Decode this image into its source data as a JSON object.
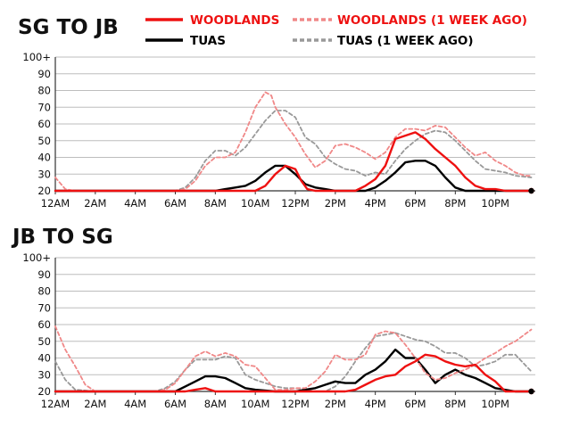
{
  "legend": [
    {
      "label": "WOODLANDS",
      "color": "#ee1111",
      "dashed": false
    },
    {
      "label": "WOODLANDS (1 WEEK AGO)",
      "color": "#ee1111",
      "dashed": true
    },
    {
      "label": "TUAS",
      "color": "#000000",
      "dashed": false
    },
    {
      "label": "TUAS (1 WEEK AGO)",
      "color": "#000000",
      "dashed": true
    }
  ],
  "colors": {
    "woodlands": "#ee1111",
    "woodlands_past": "#f08888",
    "tuas": "#000000",
    "tuas_past": "#999999",
    "grid": "#bdbdbd"
  },
  "chart_data": [
    {
      "type": "line",
      "title": "SG TO JB",
      "xlabel": "",
      "ylabel": "",
      "xlim": [
        0,
        24
      ],
      "ylim": [
        20,
        100
      ],
      "yticks": [
        "20",
        "30",
        "40",
        "50",
        "60",
        "70",
        "80",
        "90",
        "100+"
      ],
      "xticks": [
        "12AM",
        "2AM",
        "4AM",
        "6AM",
        "8AM",
        "10AM",
        "12PM",
        "2PM",
        "4PM",
        "6PM",
        "8PM",
        "10PM"
      ],
      "grid": true,
      "series": [
        {
          "name": "WOODLANDS",
          "x": [
            0,
            0.5,
            1,
            2,
            3,
            4,
            5,
            6,
            6.5,
            7,
            7.5,
            8,
            8.5,
            9,
            9.5,
            10,
            10.5,
            10.8,
            11,
            11.5,
            12,
            12.5,
            13,
            13.5,
            14,
            14.5,
            15,
            15.5,
            16,
            16.5,
            17,
            17.5,
            18,
            18.5,
            19,
            19.5,
            20,
            20.5,
            21,
            21.5,
            22,
            22.5,
            23,
            23.5,
            23.8
          ],
          "y": [
            28,
            21,
            20,
            20,
            20,
            20,
            20,
            20,
            21,
            26,
            35,
            40,
            40,
            43,
            55,
            70,
            79,
            77,
            70,
            60,
            52,
            42,
            34,
            38,
            47,
            48,
            46,
            43,
            39,
            43,
            52,
            57,
            57,
            56,
            59,
            58,
            52,
            46,
            41,
            43,
            38,
            35,
            31,
            29,
            29
          ]
        },
        {
          "name": "WOODLANDS (1 WEEK AGO)",
          "x": [
            0,
            2,
            4,
            6,
            6.5,
            7,
            7.5,
            8,
            8.5,
            9,
            9.5,
            10,
            10.5,
            11,
            11.5,
            12,
            12.5,
            13,
            13.5,
            14,
            14.5,
            15,
            15.5,
            16,
            16.5,
            17,
            17.5,
            18,
            18.5,
            19,
            19.5,
            20,
            20.5,
            21,
            21.5,
            22,
            22.5,
            23,
            23.8
          ],
          "y": [
            20,
            20,
            20,
            20,
            22,
            28,
            38,
            44,
            44,
            41,
            46,
            54,
            62,
            68,
            68,
            64,
            52,
            48,
            40,
            36,
            33,
            32,
            29,
            31,
            30,
            38,
            45,
            50,
            54,
            56,
            55,
            50,
            44,
            38,
            33,
            32,
            31,
            29,
            28
          ]
        },
        {
          "name": "TUAS",
          "x": [
            0,
            2,
            4,
            6,
            8,
            9,
            9.5,
            10,
            10.5,
            11,
            11.5,
            12,
            12.3,
            12.6,
            13,
            14,
            15,
            15.5,
            16,
            16.5,
            17,
            17.5,
            18,
            18.5,
            19,
            19.5,
            20,
            20.5,
            21,
            21.5,
            22,
            22.5,
            23,
            23.8
          ],
          "y": [
            20,
            20,
            20,
            20,
            20,
            20,
            20,
            20,
            23,
            30,
            35,
            33,
            26,
            21,
            20,
            20,
            20,
            23,
            27,
            35,
            51,
            53,
            55,
            51,
            45,
            40,
            35,
            28,
            23,
            21,
            21,
            20,
            20,
            20
          ]
        },
        {
          "name": "TUAS (1 WEEK AGO)",
          "x": [
            0,
            2,
            4,
            6,
            8,
            8.5,
            9,
            9.5,
            10,
            10.5,
            11,
            11.5,
            12,
            12.5,
            13,
            13.5,
            14,
            15,
            15.5,
            16,
            16.5,
            17,
            17.5,
            18,
            18.5,
            19,
            19.5,
            20,
            20.5,
            21,
            21.5,
            22,
            23.8
          ],
          "y": [
            20,
            20,
            20,
            20,
            20,
            21,
            22,
            23,
            26,
            31,
            35,
            35,
            30,
            24,
            22,
            21,
            20,
            20,
            20,
            22,
            26,
            31,
            37,
            38,
            38,
            35,
            28,
            22,
            20,
            20,
            20,
            20,
            20
          ]
        }
      ]
    },
    {
      "type": "line",
      "title": "JB TO SG",
      "xlabel": "",
      "ylabel": "",
      "xlim": [
        0,
        24
      ],
      "ylim": [
        20,
        100
      ],
      "yticks": [
        "20",
        "30",
        "40",
        "50",
        "60",
        "70",
        "80",
        "90",
        "100+"
      ],
      "xticks": [
        "12AM",
        "2AM",
        "4AM",
        "6AM",
        "8AM",
        "10AM",
        "12PM",
        "2PM",
        "4PM",
        "6PM",
        "8PM",
        "10PM"
      ],
      "grid": true,
      "series": [
        {
          "name": "WOODLANDS",
          "x": [
            0,
            0.5,
            1,
            1.5,
            2,
            3,
            4,
            5,
            5.5,
            6,
            6.5,
            7,
            7.5,
            8,
            8.5,
            9,
            9.5,
            10,
            10.5,
            11,
            11.5,
            12,
            12.5,
            13,
            13.5,
            14,
            14.5,
            15,
            15.5,
            16,
            16.5,
            17,
            17.5,
            18,
            18.5,
            19,
            19.5,
            20,
            20.5,
            21,
            21.5,
            22,
            22.5,
            23,
            23.8
          ],
          "y": [
            59,
            45,
            35,
            24,
            20,
            20,
            20,
            20,
            21,
            25,
            33,
            41,
            44,
            41,
            43,
            41,
            36,
            35,
            28,
            21,
            21,
            22,
            22,
            26,
            32,
            42,
            39,
            39,
            42,
            54,
            56,
            55,
            48,
            40,
            31,
            27,
            28,
            31,
            33,
            36,
            40,
            43,
            47,
            50,
            57
          ]
        },
        {
          "name": "WOODLANDS (1 WEEK AGO)",
          "x": [
            0,
            0.5,
            1,
            2,
            3,
            4,
            5,
            5.5,
            6,
            6.5,
            7,
            7.5,
            8,
            8.5,
            9,
            9.5,
            10,
            10.5,
            11,
            11.5,
            12,
            12.5,
            13,
            13.5,
            14,
            14.5,
            15,
            15.5,
            16,
            16.5,
            17,
            17.5,
            18,
            18.5,
            19,
            19.5,
            20,
            20.5,
            21,
            21.5,
            22,
            22.5,
            23,
            23.8
          ],
          "y": [
            38,
            27,
            21,
            20,
            20,
            20,
            20,
            22,
            26,
            33,
            39,
            39,
            39,
            41,
            40,
            30,
            27,
            25,
            23,
            22,
            22,
            21,
            20,
            20,
            23,
            29,
            38,
            46,
            53,
            54,
            55,
            53,
            51,
            50,
            47,
            43,
            43,
            40,
            35,
            36,
            38,
            42,
            42,
            32
          ]
        },
        {
          "name": "TUAS",
          "x": [
            0,
            2,
            4,
            6,
            6.5,
            7,
            7.5,
            8,
            9,
            10,
            12,
            14,
            14.5,
            15,
            15.5,
            16,
            16.5,
            17,
            17.5,
            18,
            18.5,
            19,
            19.5,
            20,
            20.5,
            21,
            21.5,
            22,
            22.5,
            23,
            23.8
          ],
          "y": [
            20,
            20,
            20,
            20,
            20,
            21,
            22,
            20,
            20,
            20,
            20,
            20,
            20,
            21,
            24,
            27,
            29,
            30,
            35,
            38,
            42,
            41,
            38,
            36,
            35,
            36,
            30,
            26,
            20,
            20,
            20
          ]
        },
        {
          "name": "TUAS (1 WEEK AGO)",
          "x": [
            0,
            2,
            4,
            6,
            6.5,
            7,
            7.5,
            8,
            8.5,
            9,
            9.5,
            10,
            11,
            12,
            12.5,
            13,
            13.5,
            14,
            14.5,
            15,
            15.5,
            16,
            16.5,
            17,
            17.5,
            18,
            18.5,
            19,
            19.5,
            20,
            20.5,
            21,
            21.5,
            22,
            23,
            23.8
          ],
          "y": [
            20,
            20,
            20,
            20,
            23,
            26,
            29,
            29,
            28,
            25,
            22,
            21,
            20,
            20,
            21,
            22,
            24,
            26,
            25,
            25,
            30,
            33,
            38,
            45,
            40,
            40,
            33,
            25,
            30,
            33,
            30,
            28,
            25,
            22,
            20,
            20
          ]
        }
      ]
    }
  ]
}
